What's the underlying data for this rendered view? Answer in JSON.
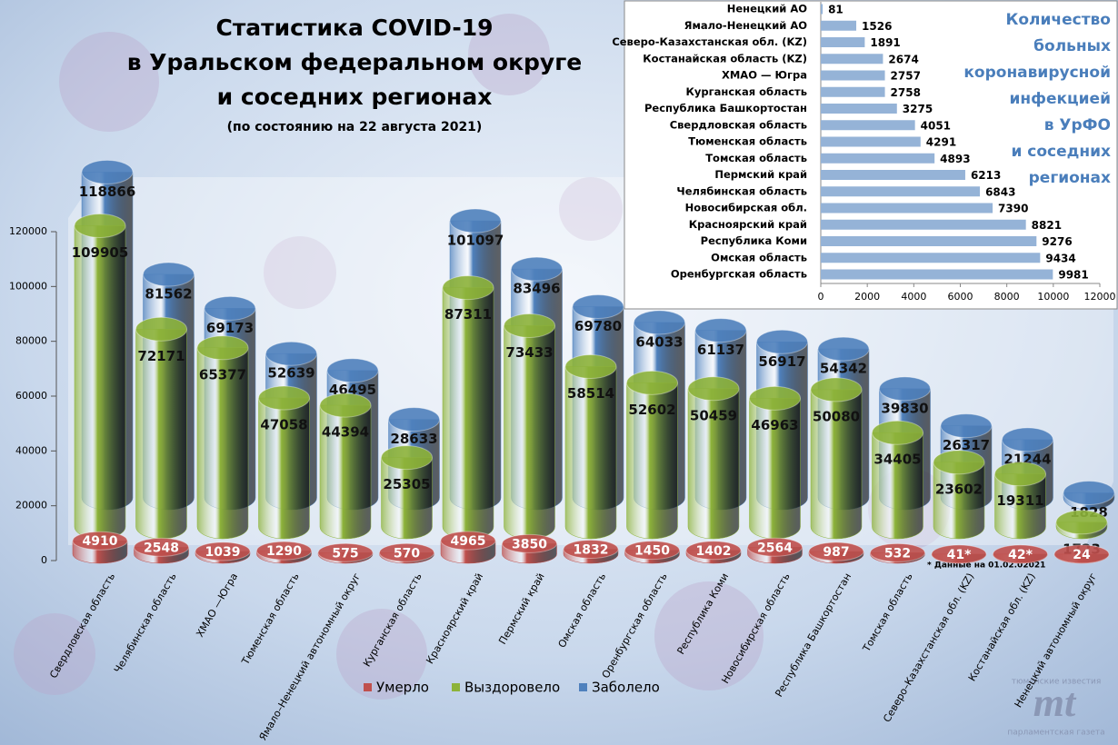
{
  "chart_data": [
    {
      "type": "cylinder",
      "title": [
        "Статистика COVID-19",
        "в Уральском федеральном округе",
        "и соседних регионах"
      ],
      "subtitle": "(по состоянию на 22 августа 2021)",
      "annotation": "* Данные на 01.02.02021",
      "categories": [
        "Свердловская область",
        "Челябинская область",
        "ХМАО —Югра",
        "Тюменская область",
        "Ямало–Ненецкий автономный округ",
        "Курганская область",
        "Красноярский край",
        "Пермский край",
        "Омская область",
        "Оренбургская область",
        "Республика Коми",
        "Новосибирская область",
        "Республика Башкортостан",
        "Томская область",
        "Северо–Казахстанская обл. (KZ)",
        "Костанайская обл. (KZ)",
        "Ненецкий автономный округ"
      ],
      "series": [
        {
          "name": "Умерло",
          "color": "#c0504d",
          "values": [
            4910,
            2548,
            1039,
            1290,
            575,
            570,
            4965,
            3850,
            1832,
            1450,
            1402,
            2564,
            987,
            532,
            41,
            42,
            24
          ],
          "value_labels": [
            "4910",
            "2548",
            "1039",
            "1290",
            "575",
            "570",
            "4965",
            "3850",
            "1832",
            "1450",
            "1402",
            "2564",
            "987",
            "532",
            "41*",
            "42*",
            "24"
          ]
        },
        {
          "name": "Выздоровело",
          "color": "#8db33a",
          "values": [
            109905,
            72171,
            65377,
            47058,
            44394,
            25305,
            87311,
            73433,
            58514,
            52602,
            50459,
            46963,
            50080,
            34405,
            23602,
            19311,
            1723
          ]
        },
        {
          "name": "Заболело",
          "color": "#4f81bd",
          "values": [
            118866,
            81562,
            69173,
            52639,
            46495,
            28633,
            101097,
            83496,
            69780,
            64033,
            61137,
            56917,
            54342,
            39830,
            26317,
            21244,
            1828
          ]
        }
      ],
      "ylim": [
        0,
        120000
      ],
      "yticks": [
        0,
        20000,
        40000,
        60000,
        80000,
        100000,
        120000
      ],
      "legend": "bottom"
    },
    {
      "type": "barh",
      "title": [
        "Количество",
        "больных",
        "коронавирусной",
        "инфекцией",
        "в УрФО",
        "и соседних",
        "регионах"
      ],
      "categories": [
        "Ненецкий АО",
        "Ямало-Ненецкий АО",
        "Северо-Казахстанская обл. (KZ)",
        "Костанайская область (KZ)",
        "ХМАО — Югра",
        "Курганская область",
        "Республика Башкортостан",
        "Свердловская область",
        "Тюменская область",
        "Томская область",
        "Пермский край",
        "Челябинская область",
        "Новосибирская обл.",
        "Красноярский край",
        "Республика Коми",
        "Омская область",
        "Оренбургская область"
      ],
      "values": [
        81,
        1526,
        1891,
        2674,
        2757,
        2758,
        3275,
        4051,
        4291,
        4893,
        6213,
        6843,
        7390,
        8821,
        9276,
        9434,
        9981
      ],
      "color": "#95b3d7",
      "xlim": [
        0,
        12000
      ],
      "xticks": [
        0,
        2000,
        4000,
        6000,
        8000,
        10000,
        12000
      ]
    }
  ],
  "logo": {
    "top": "тюменские известия",
    "mark": "mt",
    "bottom": "парламентская газета"
  }
}
